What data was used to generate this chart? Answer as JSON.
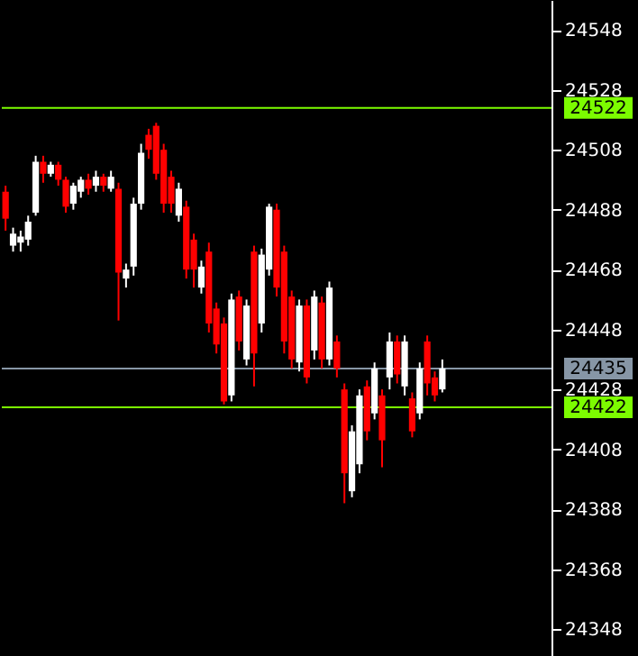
{
  "chart_data": {
    "type": "candlestick",
    "categories": [
      null,
      null,
      null,
      null,
      null,
      null,
      null,
      null,
      null,
      null,
      null,
      null,
      null,
      null,
      null,
      null,
      null,
      null,
      null,
      null,
      null,
      null,
      null,
      null,
      null,
      null,
      null,
      null,
      null,
      null,
      null,
      null,
      null,
      null,
      null,
      null,
      null,
      null,
      null,
      null,
      null,
      null,
      null,
      null,
      null,
      null,
      null,
      null,
      null,
      null,
      null,
      null,
      null,
      null,
      null,
      null,
      null,
      null,
      null,
      null,
      null,
      null,
      null,
      null,
      null,
      null,
      null,
      null,
      null,
      null,
      null,
      null,
      null
    ],
    "ohlc": [
      [
        24494,
        24496,
        24481,
        24485
      ],
      [
        24476,
        24482,
        24474,
        24480
      ],
      [
        24477,
        24481,
        24474,
        24479
      ],
      [
        24478,
        24486,
        24476,
        24484
      ],
      [
        24487,
        24506,
        24486,
        24504
      ],
      [
        24504,
        24506,
        24497,
        24500
      ],
      [
        24500,
        24504,
        24499,
        24503
      ],
      [
        24503,
        24504,
        24496,
        24498
      ],
      [
        24498,
        24499,
        24487,
        24489
      ],
      [
        24490,
        24497,
        24488,
        24496
      ],
      [
        24494,
        24499,
        24492,
        24498
      ],
      [
        24498,
        24500,
        24493,
        24495
      ],
      [
        24496,
        24501,
        24494,
        24499
      ],
      [
        24499,
        24500,
        24494,
        24496
      ],
      [
        24495,
        24501,
        24494,
        24499
      ],
      [
        24495,
        24497,
        24451,
        24467
      ],
      [
        24465,
        24470,
        24462,
        24468
      ],
      [
        24469,
        24492,
        24466,
        24490
      ],
      [
        24490,
        24510,
        24488,
        24507
      ],
      [
        24513,
        24515,
        24505,
        24508
      ],
      [
        24516,
        24517,
        24498,
        24500
      ],
      [
        24508,
        24510,
        24487,
        24490
      ],
      [
        24499,
        24501,
        24487,
        24490
      ],
      [
        24486,
        24497,
        24484,
        24495
      ],
      [
        24489,
        24491,
        24465,
        24468
      ],
      [
        24478,
        24480,
        24462,
        24468
      ],
      [
        24462,
        24471,
        24460,
        24469
      ],
      [
        24474,
        24477,
        24447,
        24450
      ],
      [
        24455,
        24457,
        24440,
        24443
      ],
      [
        24450,
        24452,
        24423,
        24424
      ],
      [
        24426,
        24460,
        24424,
        24458
      ],
      [
        24459,
        24461,
        24441,
        24444
      ],
      [
        24438,
        24458,
        24436,
        24456
      ],
      [
        24474,
        24476,
        24429,
        24440
      ],
      [
        24450,
        24475,
        24447,
        24473
      ],
      [
        24468,
        24490,
        24466,
        24489
      ],
      [
        24488,
        24490,
        24459,
        24462
      ],
      [
        24474,
        24476,
        24440,
        24444
      ],
      [
        24459,
        24461,
        24435,
        24438
      ],
      [
        24437,
        24458,
        24434,
        24456
      ],
      [
        24456,
        24458,
        24430,
        24432
      ],
      [
        24441,
        24461,
        24438,
        24459
      ],
      [
        24457,
        24459,
        24435,
        24438
      ],
      [
        24438,
        24464,
        24436,
        24462
      ],
      [
        24444,
        24446,
        24432,
        24435
      ],
      [
        24428,
        24430,
        24390,
        24400
      ],
      [
        24394,
        24416,
        24392,
        24414
      ],
      [
        24403,
        24428,
        24400,
        24426
      ],
      [
        24429,
        24431,
        24411,
        24414
      ],
      [
        24420,
        24437,
        24418,
        24435
      ],
      [
        24426,
        24428,
        24402,
        24411
      ],
      [
        24432,
        24447,
        24428,
        24444
      ],
      [
        24444,
        24446,
        24430,
        24433
      ],
      [
        24429,
        24446,
        24426,
        24444
      ],
      [
        24425,
        24427,
        24412,
        24414
      ],
      [
        24420,
        24437,
        24418,
        24435
      ],
      [
        24444,
        24446,
        24426,
        24430
      ],
      [
        24432,
        24434,
        24424,
        24426
      ],
      [
        24428,
        24438,
        24427,
        24435
      ],
      null,
      null,
      null,
      null,
      null,
      null,
      null,
      null,
      null,
      null,
      null,
      null,
      null,
      null
    ],
    "colors": [
      "#ff0000",
      "#ffffff",
      "#ffffff",
      "#ffffff",
      "#ffffff",
      "#ff0000",
      "#ffffff",
      "#ff0000",
      "#ff0000",
      "#ffffff",
      "#ffffff",
      "#ff0000",
      "#ffffff",
      "#ff0000",
      "#ffffff",
      "#ff0000",
      "#ffffff",
      "#ffffff",
      "#ffffff",
      "#ff0000",
      "#ff0000",
      "#ff0000",
      "#ff0000",
      "#ffffff",
      "#ff0000",
      "#ff0000",
      "#ffffff",
      "#ff0000",
      "#ff0000",
      "#ff0000",
      "#ffffff",
      "#ff0000",
      "#ffffff",
      "#ff0000",
      "#ffffff",
      "#ffffff",
      "#ff0000",
      "#ff0000",
      "#ff0000",
      "#ffffff",
      "#ff0000",
      "#ffffff",
      "#ff0000",
      "#ffffff",
      "#ff0000",
      "#ff0000",
      "#ffffff",
      "#ffffff",
      "#ff0000",
      "#ffffff",
      "#ff0000",
      "#ffffff",
      "#ff0000",
      "#ffffff",
      "#ff0000",
      "#ffffff",
      "#ff0000",
      "#ff0000",
      "#ffffff",
      null,
      null,
      null,
      null,
      null,
      null,
      null,
      null,
      null,
      null,
      null,
      null,
      null,
      null
    ],
    "ylim": [
      24339,
      24558
    ],
    "yticks": [
      24348,
      24368,
      24388,
      24408,
      24428,
      24448,
      24468,
      24488,
      24508,
      24528,
      24548
    ],
    "ref_lines": [
      {
        "axis": "y",
        "value": 24522,
        "label": "24522",
        "color": "#7cfc00"
      },
      {
        "axis": "y",
        "value": 24435,
        "label": "24435",
        "color": "#8796a6"
      },
      {
        "axis": "y",
        "value": 24422,
        "label": "24422",
        "color": "#7cfc00"
      }
    ]
  }
}
